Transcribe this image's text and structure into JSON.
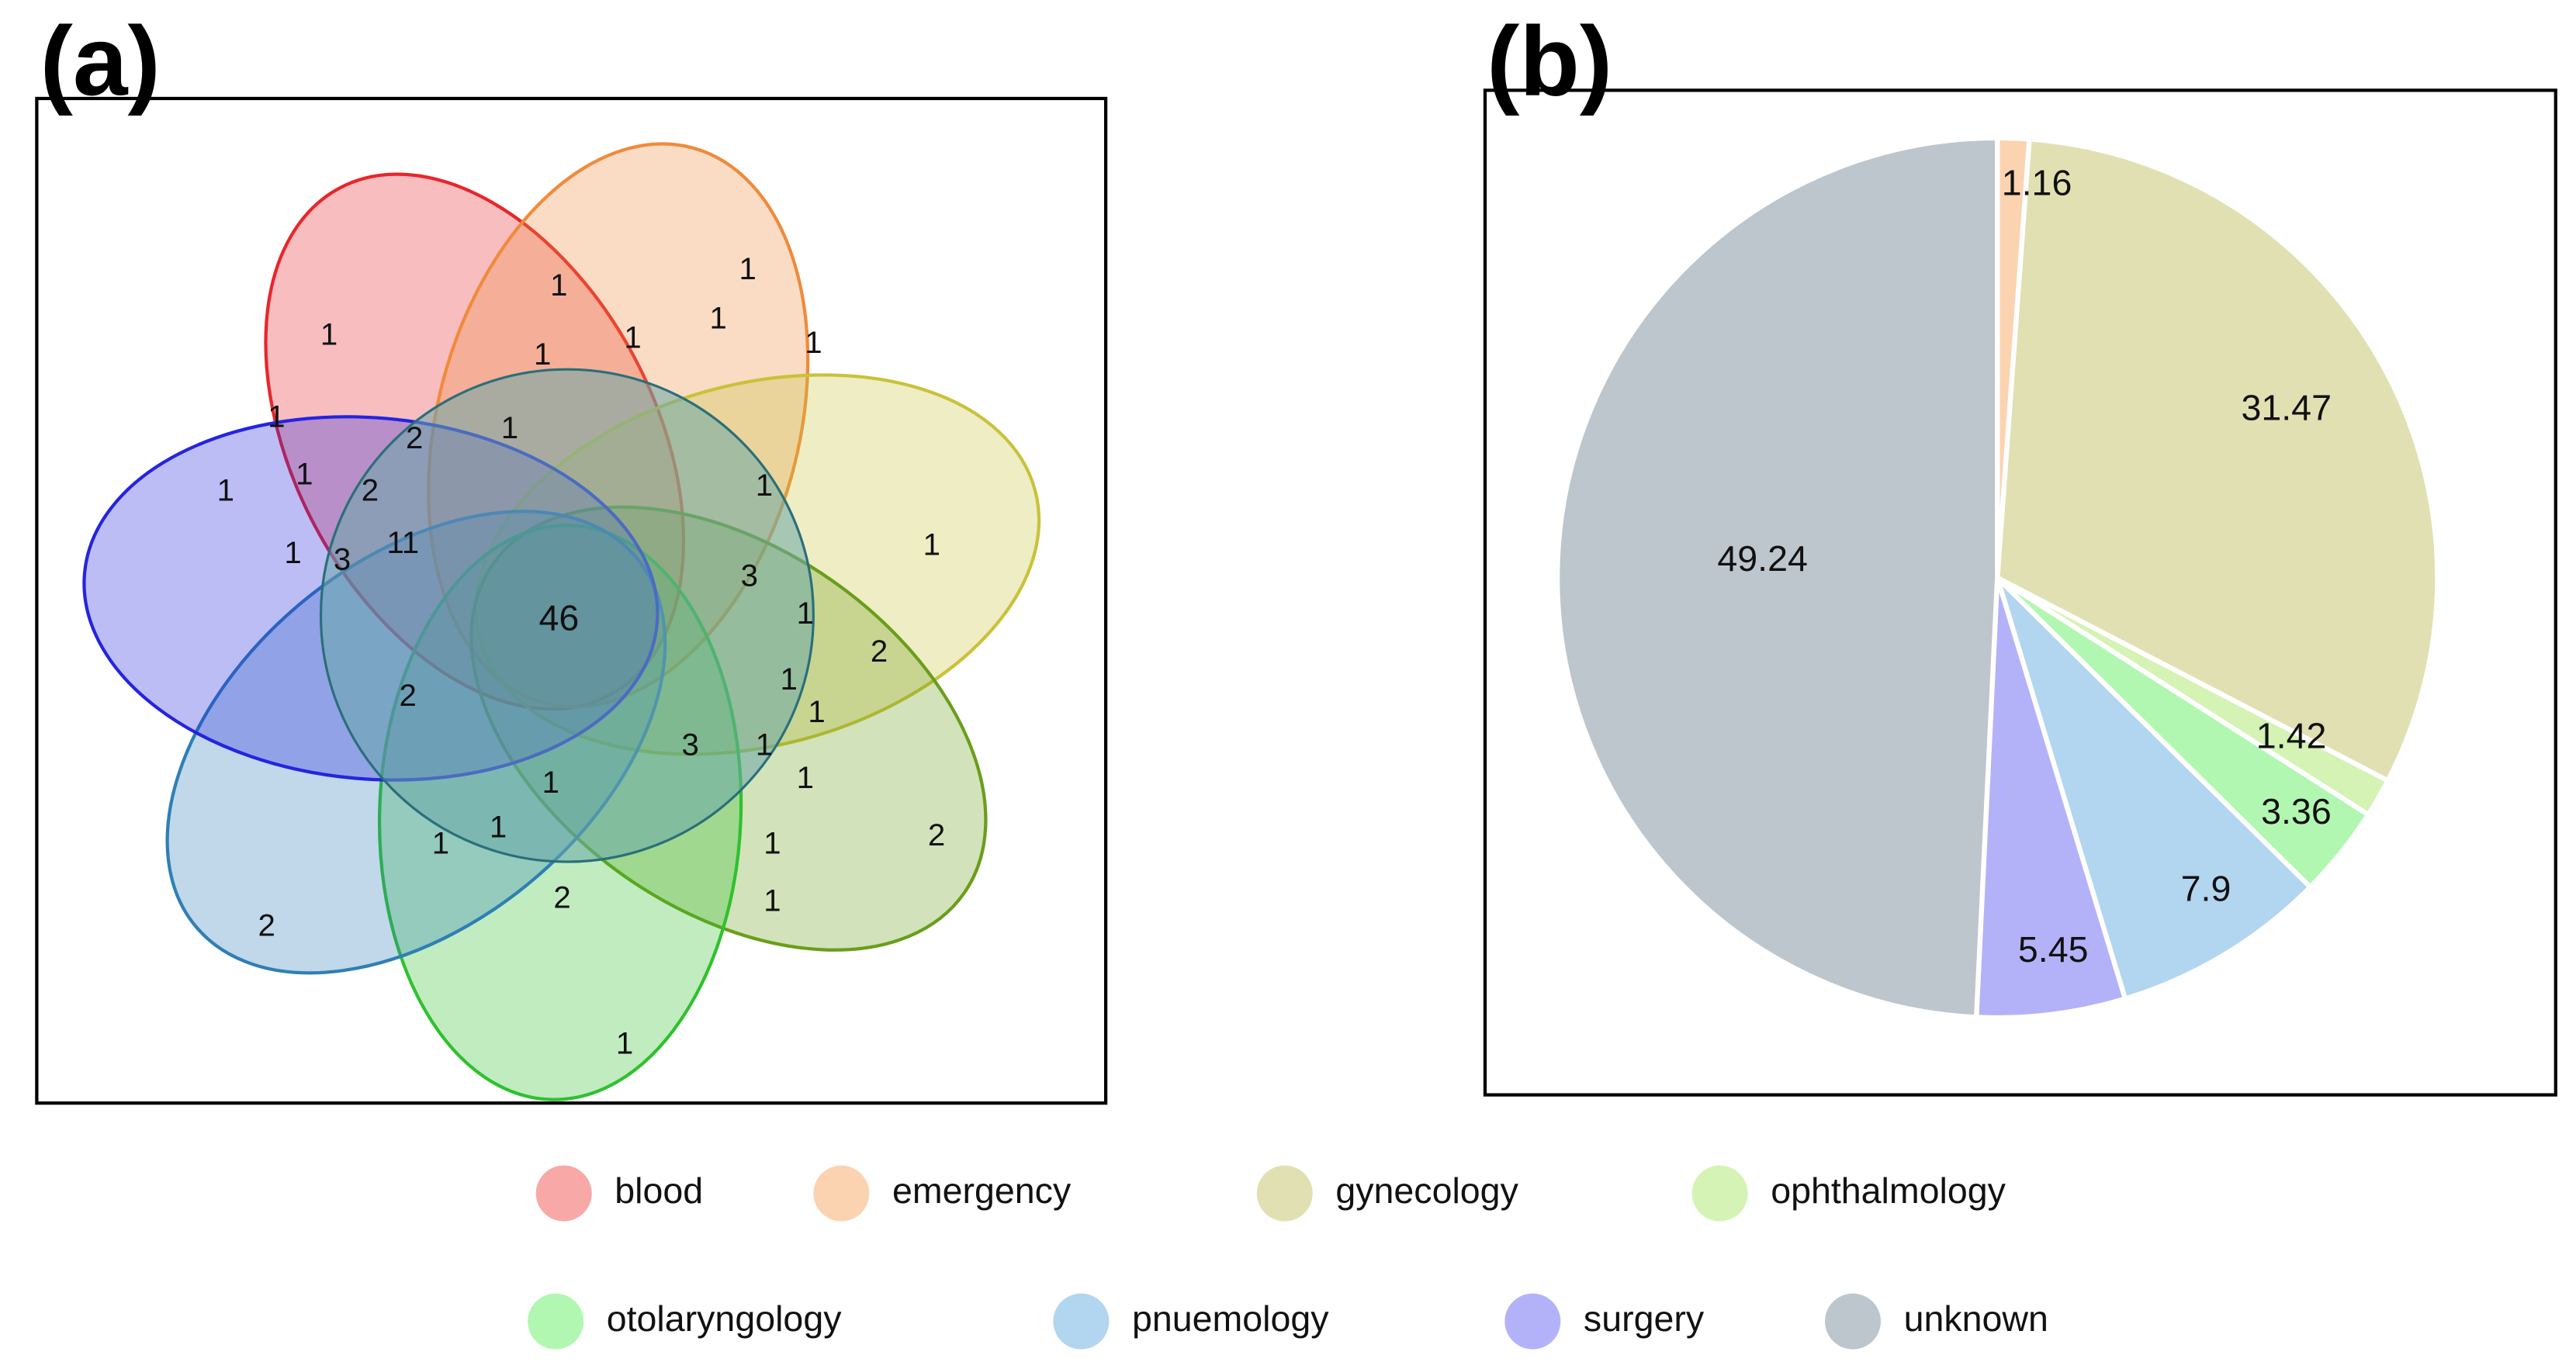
{
  "panels": {
    "a": "(a)",
    "b": "(b)"
  },
  "venn": {
    "sets": [
      {
        "name": "blood",
        "color": "#e8262b"
      },
      {
        "name": "emergency",
        "color": "#f08a3c"
      },
      {
        "name": "gynecology",
        "color": "#c9c23a"
      },
      {
        "name": "ophthalmology",
        "color": "#6a9e1a"
      },
      {
        "name": "otolaryngology",
        "color": "#2fc12f"
      },
      {
        "name": "pnuemology",
        "color": "#2f7fb5"
      },
      {
        "name": "surgery",
        "color": "#2424e0"
      }
    ],
    "counts": [
      "1",
      "1",
      "1",
      "1",
      "1",
      "1",
      "1",
      "1",
      "2",
      "1",
      "1",
      "1",
      "2",
      "1",
      "3",
      "11",
      "46",
      "1",
      "3",
      "1",
      "1",
      "2",
      "2",
      "1",
      "1",
      "3",
      "1",
      "1",
      "1",
      "2",
      "1",
      "1",
      "1",
      "1",
      "2",
      "2",
      "1"
    ]
  },
  "chart_data": {
    "type": "pie",
    "title": "",
    "unit": "%",
    "categories": [
      "blood",
      "emergency",
      "gynecology",
      "ophthalmology",
      "otolaryngology",
      "pnuemology",
      "surgery",
      "unknown"
    ],
    "values": [
      0,
      1.16,
      31.47,
      1.42,
      3.36,
      7.9,
      5.45,
      49.24
    ],
    "labels": [
      "",
      "1.16",
      "31.47",
      "1.42",
      "3.36",
      "7.9",
      "5.45",
      "49.24"
    ],
    "colors": [
      "#f9a8a8",
      "#fcd3b0",
      "#e1e0b2",
      "#d4f3b4",
      "#b1f7b1",
      "#b2d5f0",
      "#b3b2f9",
      "#bdc6cc"
    ],
    "legend_position": "bottom"
  },
  "legend": [
    {
      "label": "blood",
      "color": "#f9a8a8"
    },
    {
      "label": "emergency",
      "color": "#fcd3b0"
    },
    {
      "label": "gynecology",
      "color": "#e1e0b2"
    },
    {
      "label": "ophthalmology",
      "color": "#d4f3b4"
    },
    {
      "label": "otolaryngology",
      "color": "#b1f7b1"
    },
    {
      "label": "pnuemology",
      "color": "#b2d5f0"
    },
    {
      "label": "surgery",
      "color": "#b3b2f9"
    },
    {
      "label": "unknown",
      "color": "#bdc6cc"
    }
  ]
}
